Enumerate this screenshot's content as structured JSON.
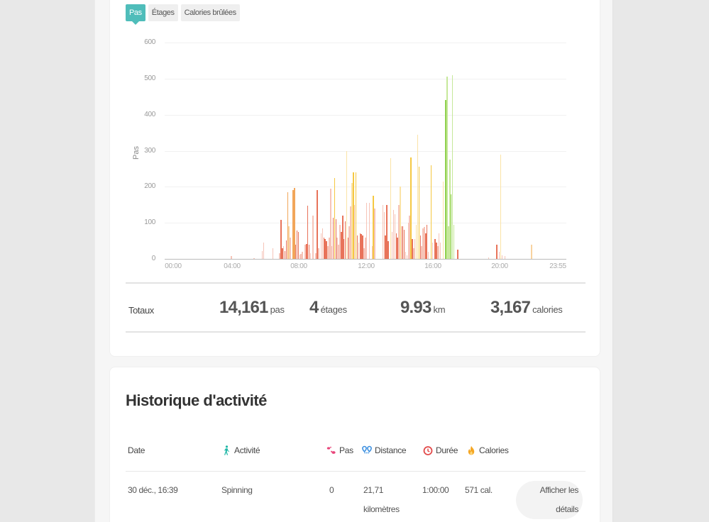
{
  "tabs": [
    {
      "label": "Pas",
      "active": true
    },
    {
      "label": "Étages",
      "active": false
    },
    {
      "label": "Calories brûlées",
      "active": false
    }
  ],
  "chart": {
    "y_label": "Pas",
    "y_ticks": [
      "600",
      "500",
      "400",
      "300",
      "200",
      "100",
      "0"
    ],
    "x_ticks": [
      "00:00",
      "04:00",
      "08:00",
      "12:00",
      "16:00",
      "20:00",
      "23:55"
    ]
  },
  "chart_data": {
    "type": "bar",
    "title": "",
    "xlabel": "",
    "ylabel": "Pas",
    "ylim": [
      0,
      600
    ],
    "x_range": [
      "00:00",
      "23:55"
    ],
    "bin_minutes": 5,
    "grid": true,
    "legend": "none",
    "colors": {
      "low": "#f6c4b8",
      "mid": "#e8735a",
      "light_orange": "#f8d3a0",
      "orange": "#f2a65a",
      "yellow": "#f5c842",
      "light_yellow": "#fbe3a6",
      "green": "#8fd14f",
      "light_green": "#c6e89a"
    },
    "bars": [
      {
        "time": "03:35",
        "value": 8,
        "color": "low"
      },
      {
        "time": "05:00",
        "value": 3,
        "color": "low"
      },
      {
        "time": "05:30",
        "value": 22,
        "color": "low"
      },
      {
        "time": "05:35",
        "value": 45,
        "color": "low"
      },
      {
        "time": "06:10",
        "value": 30,
        "color": "low"
      },
      {
        "time": "06:35",
        "value": 15,
        "color": "low"
      },
      {
        "time": "06:40",
        "value": 108,
        "color": "mid"
      },
      {
        "time": "06:45",
        "value": 30,
        "color": "mid"
      },
      {
        "time": "06:50",
        "value": 35,
        "color": "low"
      },
      {
        "time": "06:55",
        "value": 22,
        "color": "mid"
      },
      {
        "time": "07:00",
        "value": 52,
        "color": "mid"
      },
      {
        "time": "07:05",
        "value": 185,
        "color": "orange"
      },
      {
        "time": "07:10",
        "value": 90,
        "color": "light_orange"
      },
      {
        "time": "07:15",
        "value": 60,
        "color": "low"
      },
      {
        "time": "07:25",
        "value": 190,
        "color": "orange"
      },
      {
        "time": "07:30",
        "value": 197,
        "color": "orange"
      },
      {
        "time": "07:35",
        "value": 40,
        "color": "mid"
      },
      {
        "time": "07:40",
        "value": 78,
        "color": "mid"
      },
      {
        "time": "07:45",
        "value": 75,
        "color": "mid"
      },
      {
        "time": "07:50",
        "value": 12,
        "color": "low"
      },
      {
        "time": "07:55",
        "value": 14,
        "color": "low"
      },
      {
        "time": "08:00",
        "value": 20,
        "color": "low"
      },
      {
        "time": "08:10",
        "value": 40,
        "color": "low"
      },
      {
        "time": "08:15",
        "value": 42,
        "color": "mid"
      },
      {
        "time": "08:20",
        "value": 148,
        "color": "mid"
      },
      {
        "time": "08:25",
        "value": 40,
        "color": "mid"
      },
      {
        "time": "08:30",
        "value": 15,
        "color": "low"
      },
      {
        "time": "08:40",
        "value": 120,
        "color": "low"
      },
      {
        "time": "08:50",
        "value": 15,
        "color": "low"
      },
      {
        "time": "08:55",
        "value": 190,
        "color": "mid"
      },
      {
        "time": "09:00",
        "value": 30,
        "color": "low"
      },
      {
        "time": "09:10",
        "value": 70,
        "color": "low"
      },
      {
        "time": "09:15",
        "value": 85,
        "color": "low"
      },
      {
        "time": "09:20",
        "value": 60,
        "color": "mid"
      },
      {
        "time": "09:25",
        "value": 55,
        "color": "mid"
      },
      {
        "time": "09:30",
        "value": 50,
        "color": "mid"
      },
      {
        "time": "09:35",
        "value": 35,
        "color": "low"
      },
      {
        "time": "09:40",
        "value": 60,
        "color": "low"
      },
      {
        "time": "09:45",
        "value": 195,
        "color": "low"
      },
      {
        "time": "09:50",
        "value": 35,
        "color": "low"
      },
      {
        "time": "09:55",
        "value": 115,
        "color": "mid"
      },
      {
        "time": "10:00",
        "value": 225,
        "color": "yellow"
      },
      {
        "time": "10:05",
        "value": 110,
        "color": "mid"
      },
      {
        "time": "10:10",
        "value": 60,
        "color": "low"
      },
      {
        "time": "10:15",
        "value": 40,
        "color": "low"
      },
      {
        "time": "10:20",
        "value": 95,
        "color": "low"
      },
      {
        "time": "10:25",
        "value": 75,
        "color": "mid"
      },
      {
        "time": "10:30",
        "value": 120,
        "color": "mid"
      },
      {
        "time": "10:35",
        "value": 55,
        "color": "mid"
      },
      {
        "time": "10:40",
        "value": 105,
        "color": "mid"
      },
      {
        "time": "10:45",
        "value": 300,
        "color": "light_yellow"
      },
      {
        "time": "10:50",
        "value": 60,
        "color": "mid"
      },
      {
        "time": "10:55",
        "value": 90,
        "color": "low"
      },
      {
        "time": "11:00",
        "value": 145,
        "color": "low"
      },
      {
        "time": "11:05",
        "value": 210,
        "color": "light_yellow"
      },
      {
        "time": "11:10",
        "value": 240,
        "color": "yellow"
      },
      {
        "time": "11:15",
        "value": 150,
        "color": "low"
      },
      {
        "time": "11:20",
        "value": 240,
        "color": "yellow"
      },
      {
        "time": "11:25",
        "value": 65,
        "color": "mid"
      },
      {
        "time": "11:30",
        "value": 45,
        "color": "low"
      },
      {
        "time": "11:35",
        "value": 70,
        "color": "mid"
      },
      {
        "time": "11:40",
        "value": 68,
        "color": "mid"
      },
      {
        "time": "11:45",
        "value": 65,
        "color": "mid"
      },
      {
        "time": "11:50",
        "value": 30,
        "color": "low"
      },
      {
        "time": "11:55",
        "value": 60,
        "color": "low"
      },
      {
        "time": "12:00",
        "value": 155,
        "color": "low"
      },
      {
        "time": "12:10",
        "value": 155,
        "color": "low"
      },
      {
        "time": "12:20",
        "value": 35,
        "color": "low"
      },
      {
        "time": "12:25",
        "value": 175,
        "color": "yellow"
      },
      {
        "time": "12:30",
        "value": 140,
        "color": "low"
      },
      {
        "time": "13:00",
        "value": 150,
        "color": "low"
      },
      {
        "time": "13:05",
        "value": 130,
        "color": "low"
      },
      {
        "time": "13:10",
        "value": 65,
        "color": "mid"
      },
      {
        "time": "13:15",
        "value": 150,
        "color": "mid"
      },
      {
        "time": "13:20",
        "value": 50,
        "color": "mid"
      },
      {
        "time": "13:30",
        "value": 280,
        "color": "light_yellow"
      },
      {
        "time": "13:35",
        "value": 75,
        "color": "low"
      },
      {
        "time": "13:40",
        "value": 135,
        "color": "low"
      },
      {
        "time": "13:45",
        "value": 125,
        "color": "low"
      },
      {
        "time": "13:50",
        "value": 70,
        "color": "mid"
      },
      {
        "time": "13:55",
        "value": 60,
        "color": "mid"
      },
      {
        "time": "14:00",
        "value": 150,
        "color": "low"
      },
      {
        "time": "14:05",
        "value": 200,
        "color": "light_yellow"
      },
      {
        "time": "14:10",
        "value": 90,
        "color": "low"
      },
      {
        "time": "14:15",
        "value": 90,
        "color": "mid"
      },
      {
        "time": "14:20",
        "value": 80,
        "color": "mid"
      },
      {
        "time": "14:25",
        "value": 20,
        "color": "low"
      },
      {
        "time": "14:30",
        "value": 10,
        "color": "low"
      },
      {
        "time": "14:35",
        "value": 100,
        "color": "low"
      },
      {
        "time": "14:40",
        "value": 120,
        "color": "low"
      },
      {
        "time": "14:45",
        "value": 282,
        "color": "yellow"
      },
      {
        "time": "14:50",
        "value": 55,
        "color": "mid"
      },
      {
        "time": "14:55",
        "value": 30,
        "color": "low"
      },
      {
        "time": "15:00",
        "value": 55,
        "color": "low"
      },
      {
        "time": "15:05",
        "value": 95,
        "color": "light_yellow"
      },
      {
        "time": "15:10",
        "value": 345,
        "color": "light_yellow"
      },
      {
        "time": "15:15",
        "value": 255,
        "color": "yellow"
      },
      {
        "time": "15:20",
        "value": 65,
        "color": "mid"
      },
      {
        "time": "15:25",
        "value": 35,
        "color": "low"
      },
      {
        "time": "15:30",
        "value": 85,
        "color": "low"
      },
      {
        "time": "15:35",
        "value": 88,
        "color": "low"
      },
      {
        "time": "15:40",
        "value": 70,
        "color": "mid"
      },
      {
        "time": "15:45",
        "value": 95,
        "color": "mid"
      },
      {
        "time": "15:50",
        "value": 20,
        "color": "low"
      },
      {
        "time": "16:00",
        "value": 260,
        "color": "yellow"
      },
      {
        "time": "16:05",
        "value": 45,
        "color": "low"
      },
      {
        "time": "16:15",
        "value": 55,
        "color": "mid"
      },
      {
        "time": "16:20",
        "value": 45,
        "color": "mid"
      },
      {
        "time": "16:25",
        "value": 35,
        "color": "low"
      },
      {
        "time": "16:30",
        "value": 70,
        "color": "low"
      },
      {
        "time": "16:35",
        "value": 45,
        "color": "low"
      },
      {
        "time": "16:45",
        "value": 215,
        "color": "light_yellow"
      },
      {
        "time": "16:55",
        "value": 440,
        "color": "green"
      },
      {
        "time": "17:00",
        "value": 505,
        "color": "light_green"
      },
      {
        "time": "17:05",
        "value": 90,
        "color": "light_green"
      },
      {
        "time": "17:10",
        "value": 275,
        "color": "light_green"
      },
      {
        "time": "17:15",
        "value": 180,
        "color": "green"
      },
      {
        "time": "17:20",
        "value": 510,
        "color": "light_green"
      },
      {
        "time": "17:25",
        "value": 95,
        "color": "light_green"
      },
      {
        "time": "17:40",
        "value": 25,
        "color": "mid"
      },
      {
        "time": "19:35",
        "value": 5,
        "color": "low"
      },
      {
        "time": "20:05",
        "value": 40,
        "color": "mid"
      },
      {
        "time": "20:15",
        "value": 20,
        "color": "low"
      },
      {
        "time": "20:20",
        "value": 290,
        "color": "light_yellow"
      },
      {
        "time": "20:25",
        "value": 10,
        "color": "low"
      },
      {
        "time": "20:35",
        "value": 8,
        "color": "low"
      },
      {
        "time": "22:15",
        "value": 40,
        "color": "light_orange"
      }
    ]
  },
  "totals": {
    "label": "Totaux",
    "steps": {
      "value": "14,161",
      "unit": "pas"
    },
    "floors": {
      "value": "4",
      "unit": "étages"
    },
    "distance": {
      "value": "9.93",
      "unit": "km"
    },
    "calories": {
      "value": "3,167",
      "unit": "calories"
    }
  },
  "history": {
    "title": "Historique d'activité",
    "columns": {
      "date": "Date",
      "activity": "Activité",
      "steps": "Pas",
      "distance": "Distance",
      "duration": "Durée",
      "calories": "Calories"
    },
    "icon_colors": {
      "activity": "#1fb7a6",
      "steps": "#e8457a",
      "distance": "#3b8fe0",
      "duration": "#e24b4b",
      "calories": "#f5a623"
    },
    "rows": [
      {
        "date": "30 déc., 16:39",
        "activity": "Spinning",
        "steps": "0",
        "distance_line1": "21,71",
        "distance_line2": "kilomètres",
        "duration": "1:00:00",
        "calories": "571 cal.",
        "details_line1": "Afficher les",
        "details_line2": "détails"
      }
    ]
  }
}
